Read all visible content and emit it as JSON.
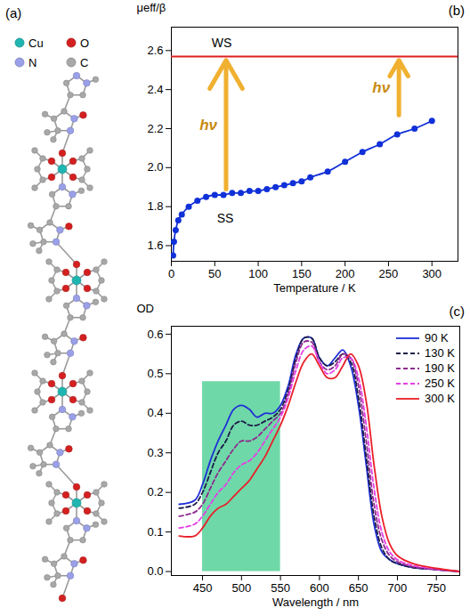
{
  "structure": {
    "title": "(a)",
    "atoms": [
      {
        "label": "Cu",
        "color": "#1fb5b0"
      },
      {
        "label": "O",
        "color": "#d42020"
      },
      {
        "label": "N",
        "color": "#9aa0e8"
      },
      {
        "label": "C",
        "color": "#a8a8a8"
      }
    ]
  },
  "chart_data": [
    {
      "type": "line",
      "title": "(b)",
      "x_label": "Temperature / K",
      "y_label": "μeff/β",
      "xlim": [
        0,
        330
      ],
      "xticks": [
        0,
        50,
        100,
        150,
        200,
        250,
        300
      ],
      "ylim": [
        1.52,
        2.72
      ],
      "yticks": [
        1.6,
        1.8,
        {
          "value": 2,
          "label": "2.0"
        },
        2.2,
        2.4,
        2.6
      ],
      "x": [
        2,
        3,
        5,
        8,
        12,
        20,
        30,
        40,
        50,
        60,
        70,
        80,
        90,
        100,
        110,
        120,
        130,
        140,
        150,
        160,
        180,
        200,
        220,
        240,
        260,
        280,
        300
      ],
      "series": [
        {
          "color": "#1030d8",
          "marker": "circle",
          "line_style": "solid",
          "values": [
            1.55,
            1.62,
            1.68,
            1.73,
            1.76,
            1.8,
            1.83,
            1.85,
            1.86,
            1.86,
            1.87,
            1.87,
            1.88,
            1.88,
            1.89,
            1.9,
            1.91,
            1.92,
            1.93,
            1.95,
            1.98,
            2.03,
            2.08,
            2.12,
            2.17,
            2.2,
            2.24
          ]
        }
      ],
      "reference_lines": [
        {
          "y": 2.57,
          "color": "#e02020"
        }
      ],
      "annotations": [
        {
          "text": "WS",
          "x": 58,
          "y": 2.64
        },
        {
          "text": "SS",
          "x": 62,
          "y": 1.74
        }
      ],
      "arrows": [
        {
          "x": 63,
          "y1": 1.89,
          "y2": 2.55,
          "label": "hν",
          "color": "#f0b030"
        },
        {
          "x": 262,
          "y1": 2.27,
          "y2": 2.55,
          "label": "hν",
          "color": "#f0b030"
        }
      ]
    },
    {
      "type": "line",
      "title": "(c)",
      "x_label": "Wavelength / nm",
      "y_label": "OD",
      "xlim": [
        410,
        780
      ],
      "xticks": [
        450,
        500,
        550,
        600,
        650,
        700,
        750
      ],
      "ylim": [
        -0.01,
        0.62
      ],
      "yticks": [
        {
          "value": 0,
          "label": "0.0"
        },
        0.1,
        0.2,
        0.3,
        0.4,
        0.5,
        0.6
      ],
      "legend": "top-right",
      "highlight": {
        "x": [
          450,
          550
        ],
        "y": [
          0,
          0.48
        ],
        "color": "#6fd8a8"
      },
      "x": [
        420,
        440,
        450,
        460,
        470,
        480,
        490,
        500,
        510,
        520,
        530,
        540,
        550,
        560,
        570,
        580,
        590,
        600,
        610,
        620,
        630,
        640,
        650,
        660,
        670,
        680,
        690,
        700,
        720,
        750,
        780
      ],
      "series": [
        {
          "name": "90 K",
          "color": "#1f2fd6",
          "line_style": "solid",
          "values": [
            0.17,
            0.18,
            0.22,
            0.28,
            0.33,
            0.37,
            0.41,
            0.42,
            0.41,
            0.39,
            0.4,
            0.4,
            0.42,
            0.47,
            0.55,
            0.59,
            0.59,
            0.54,
            0.52,
            0.54,
            0.56,
            0.52,
            0.42,
            0.27,
            0.12,
            0.05,
            0.03,
            0.02,
            0.01,
            0.005,
            0
          ]
        },
        {
          "name": "130 K",
          "color": "#1c1c4a",
          "line_style": "dashed",
          "values": [
            0.16,
            0.17,
            0.2,
            0.25,
            0.3,
            0.33,
            0.37,
            0.38,
            0.37,
            0.37,
            0.38,
            0.39,
            0.41,
            0.46,
            0.54,
            0.59,
            0.59,
            0.54,
            0.52,
            0.53,
            0.55,
            0.53,
            0.44,
            0.29,
            0.14,
            0.06,
            0.03,
            0.02,
            0.01,
            0.005,
            0
          ]
        },
        {
          "name": "190 K",
          "color": "#8e2a8e",
          "line_style": "dashed",
          "values": [
            0.14,
            0.15,
            0.17,
            0.21,
            0.25,
            0.28,
            0.31,
            0.33,
            0.33,
            0.34,
            0.36,
            0.38,
            0.4,
            0.45,
            0.53,
            0.58,
            0.58,
            0.53,
            0.51,
            0.52,
            0.55,
            0.54,
            0.47,
            0.33,
            0.17,
            0.08,
            0.04,
            0.025,
            0.012,
            0.005,
            0
          ]
        },
        {
          "name": "250 K",
          "color": "#e63ce6",
          "line_style": "dashed",
          "values": [
            0.11,
            0.12,
            0.14,
            0.17,
            0.2,
            0.22,
            0.25,
            0.27,
            0.28,
            0.3,
            0.33,
            0.36,
            0.39,
            0.44,
            0.51,
            0.56,
            0.57,
            0.53,
            0.5,
            0.51,
            0.54,
            0.54,
            0.49,
            0.37,
            0.21,
            0.1,
            0.05,
            0.03,
            0.015,
            0.006,
            0
          ]
        },
        {
          "name": "300 K",
          "color": "#e8202a",
          "line_style": "solid",
          "values": [
            0.09,
            0.09,
            0.11,
            0.14,
            0.16,
            0.17,
            0.19,
            0.21,
            0.23,
            0.26,
            0.29,
            0.33,
            0.37,
            0.42,
            0.48,
            0.53,
            0.55,
            0.52,
            0.49,
            0.49,
            0.52,
            0.55,
            0.52,
            0.43,
            0.27,
            0.14,
            0.07,
            0.04,
            0.02,
            0.008,
            0
          ]
        }
      ]
    }
  ]
}
